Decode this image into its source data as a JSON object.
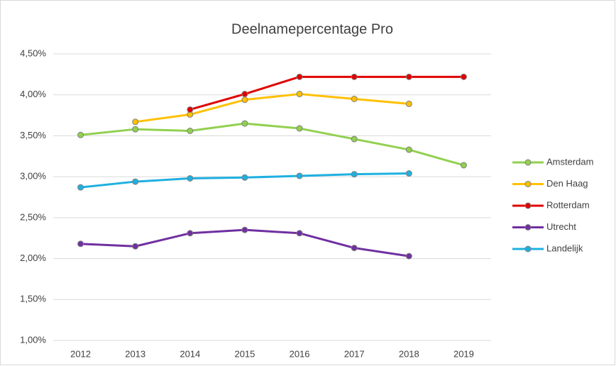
{
  "chart_data": {
    "type": "line",
    "title": "Deelnamepercentage Pro",
    "categories": [
      "2012",
      "2013",
      "2014",
      "2015",
      "2016",
      "2017",
      "2018",
      "2019"
    ],
    "series": [
      {
        "name": "Amsterdam",
        "color": "#92d050",
        "values": [
          3.51,
          3.58,
          3.56,
          3.65,
          3.59,
          3.46,
          3.33,
          3.14
        ]
      },
      {
        "name": "Den Haag",
        "color": "#ffc000",
        "values": [
          null,
          3.67,
          3.76,
          3.94,
          4.01,
          3.95,
          3.89,
          null
        ]
      },
      {
        "name": "Rotterdam",
        "color": "#e00000",
        "values": [
          null,
          null,
          3.82,
          4.01,
          4.22,
          4.22,
          4.22,
          4.22
        ]
      },
      {
        "name": "Utrecht",
        "color": "#7030a0",
        "values": [
          2.18,
          2.15,
          2.31,
          2.35,
          2.31,
          2.13,
          2.03,
          null
        ]
      },
      {
        "name": "Landelijk",
        "color": "#1fb0e0",
        "values": [
          2.87,
          2.94,
          2.98,
          2.99,
          3.01,
          3.03,
          3.04,
          null
        ]
      }
    ],
    "ylim": [
      1,
      4.5
    ],
    "yticks": [
      {
        "value": 1,
        "label": "1,00%"
      },
      {
        "value": 1.5,
        "label": "1,50%"
      },
      {
        "value": 2,
        "label": "2,00%"
      },
      {
        "value": 2.5,
        "label": "2,50%"
      },
      {
        "value": 3,
        "label": "3,00%"
      },
      {
        "value": 3.5,
        "label": "3,50%"
      },
      {
        "value": 4,
        "label": "4,00%"
      },
      {
        "value": 4.5,
        "label": "4,50%"
      }
    ],
    "grid": true,
    "legend": "right"
  }
}
